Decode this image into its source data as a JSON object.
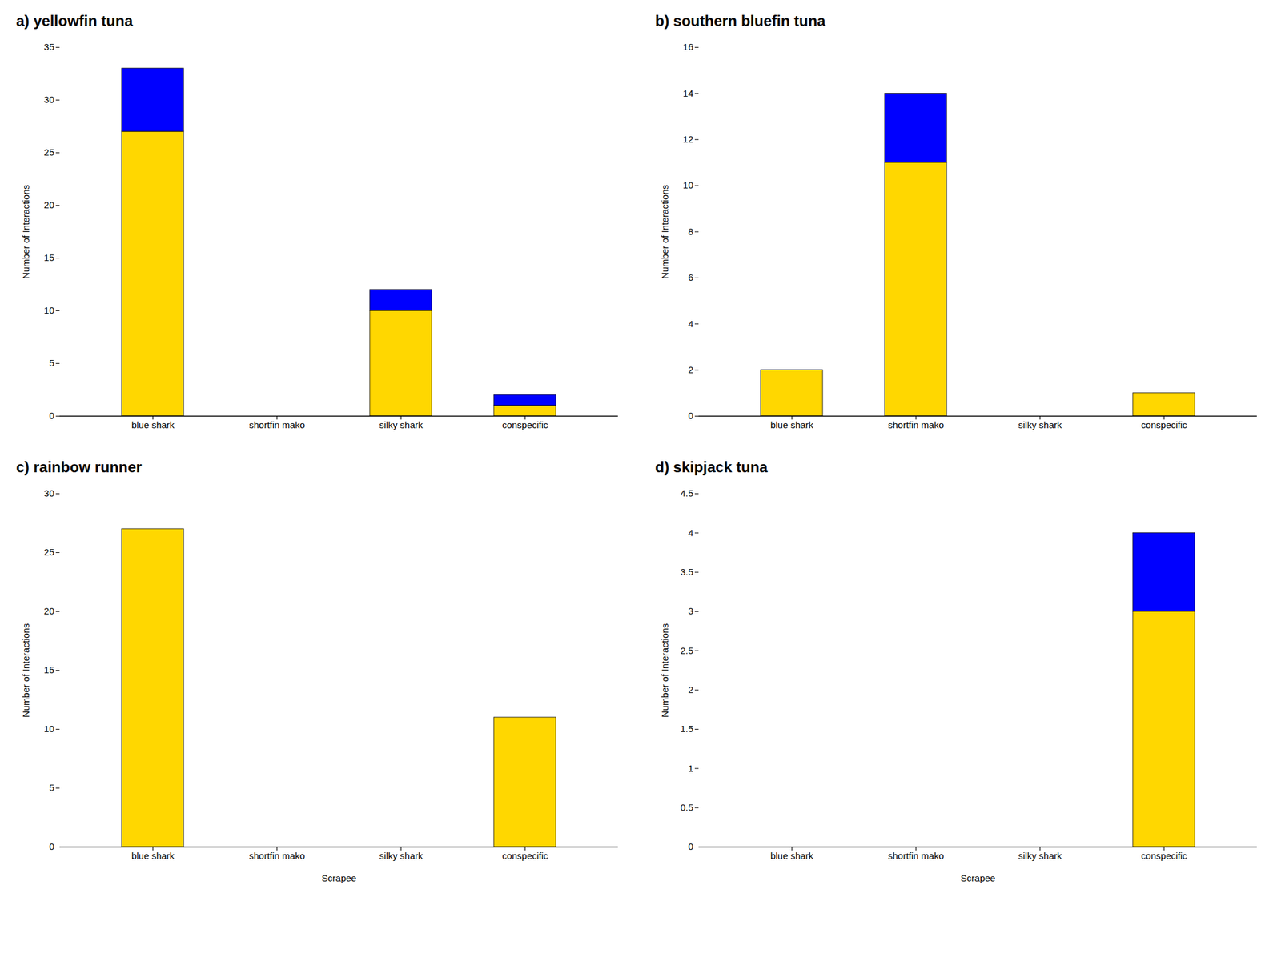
{
  "chart_data": [
    {
      "type": "bar",
      "title": "a) yellowfin tuna",
      "stacked": true,
      "grid": false,
      "categories": [
        "blue shark",
        "shortfin mako",
        "silky shark",
        "conspecific"
      ],
      "series": [
        {
          "color": "#FFD700",
          "values": [
            27,
            0,
            10,
            1
          ]
        },
        {
          "color": "#0000FF",
          "values": [
            6,
            0,
            2,
            1
          ]
        }
      ],
      "ylabel": "Number of Interactions",
      "ylim": [
        0,
        35
      ],
      "yticks": [
        0,
        5,
        10,
        15,
        20,
        25,
        30,
        35
      ]
    },
    {
      "type": "bar",
      "title": "b) southern bluefin tuna",
      "stacked": true,
      "grid": false,
      "categories": [
        "blue shark",
        "shortfin mako",
        "silky shark",
        "conspecific"
      ],
      "series": [
        {
          "color": "#FFD700",
          "values": [
            2,
            11,
            0,
            1
          ]
        },
        {
          "color": "#0000FF",
          "values": [
            0,
            3,
            0,
            0
          ]
        }
      ],
      "ylabel": "Number of Interactions",
      "ylim": [
        0,
        16
      ],
      "yticks": [
        0,
        2,
        4,
        6,
        8,
        10,
        12,
        14,
        16
      ]
    },
    {
      "type": "bar",
      "title": "c) rainbow runner",
      "stacked": true,
      "grid": false,
      "categories": [
        "blue shark",
        "shortfin mako",
        "silky shark",
        "conspecific"
      ],
      "series": [
        {
          "color": "#FFD700",
          "values": [
            27,
            0,
            0,
            11
          ]
        },
        {
          "color": "#0000FF",
          "values": [
            0,
            0,
            0,
            0
          ]
        }
      ],
      "xlabel": "Scrapee",
      "ylabel": "Number of Interactions",
      "ylim": [
        0,
        30
      ],
      "yticks": [
        0,
        5,
        10,
        15,
        20,
        25,
        30
      ]
    },
    {
      "type": "bar",
      "title": "d) skipjack tuna",
      "stacked": true,
      "grid": false,
      "categories": [
        "blue shark",
        "shortfin mako",
        "silky shark",
        "conspecific"
      ],
      "series": [
        {
          "color": "#FFD700",
          "values": [
            0,
            0,
            0,
            3
          ]
        },
        {
          "color": "#0000FF",
          "values": [
            0,
            0,
            0,
            1
          ]
        }
      ],
      "xlabel": "Scrapee",
      "ylabel": "Number of Interactions",
      "ylim": [
        0,
        4.5
      ],
      "yticks": [
        0,
        0.5,
        1,
        1.5,
        2,
        2.5,
        3,
        3.5,
        4,
        4.5
      ]
    }
  ]
}
